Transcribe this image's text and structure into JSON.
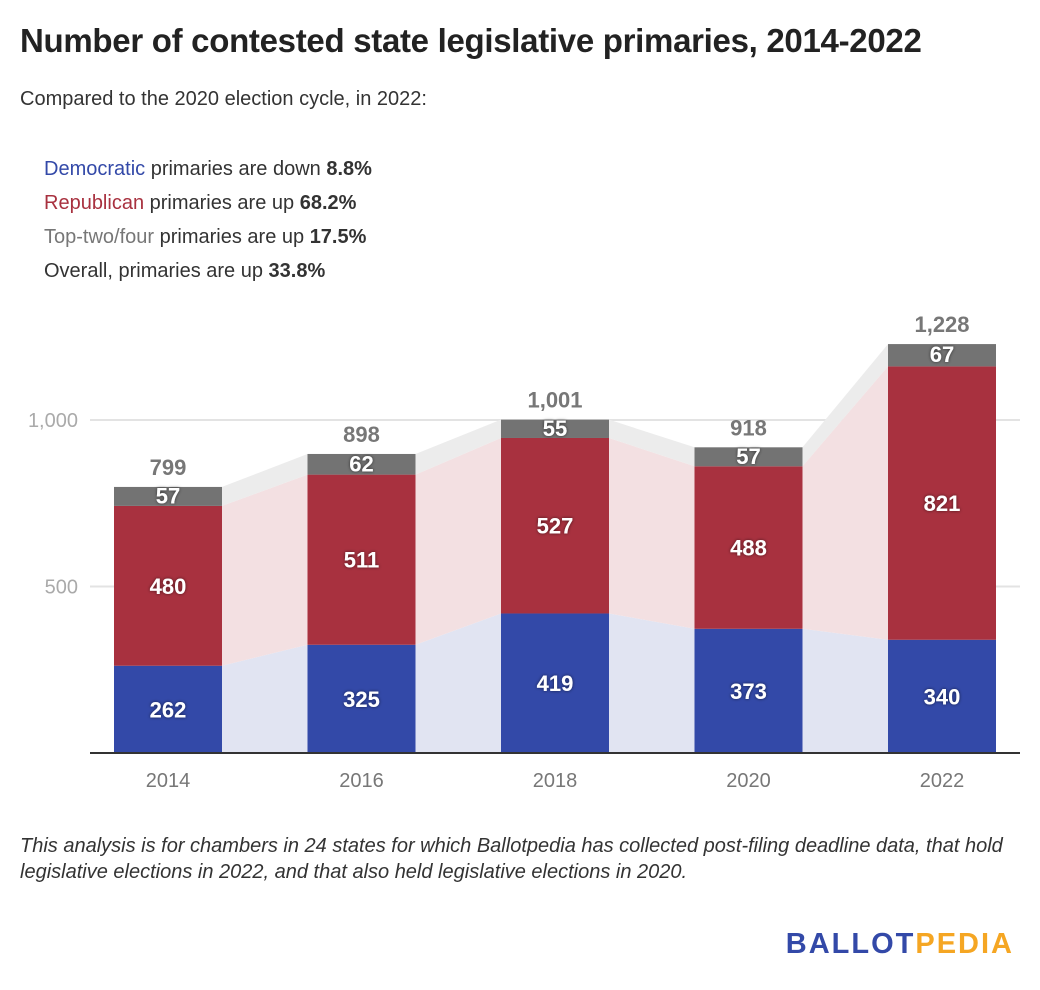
{
  "title": "Number of contested state legislative primaries, 2014-2022",
  "subtitle": "Compared to the 2020 election cycle, in 2022:",
  "notes": [
    {
      "keyword": "Democratic",
      "text": " primaries are down ",
      "value": "8.8%",
      "color": "#3349a8"
    },
    {
      "keyword": "Republican",
      "text": " primaries are up ",
      "value": "68.2%",
      "color": "#a8313f"
    },
    {
      "keyword": "Top-two/four",
      "text": " primaries are up ",
      "value": "17.5%",
      "color": "#777777"
    },
    {
      "keyword": "Overall",
      "text": ", primaries are up ",
      "value": "33.8%",
      "color": "#333333"
    }
  ],
  "chart_data": {
    "type": "bar",
    "stacked": true,
    "categories": [
      "2014",
      "2016",
      "2018",
      "2020",
      "2022"
    ],
    "series": [
      {
        "name": "Democratic",
        "color": "#3349a8",
        "area_color": "#e1e4f2",
        "values": [
          262,
          325,
          419,
          373,
          340
        ]
      },
      {
        "name": "Republican",
        "color": "#a8313f",
        "area_color": "#f3e0e2",
        "values": [
          480,
          511,
          527,
          488,
          821
        ]
      },
      {
        "name": "Top-two/four",
        "color": "#737373",
        "area_color": "#ececec",
        "values": [
          57,
          62,
          55,
          57,
          67
        ]
      }
    ],
    "totals": [
      "799",
      "898",
      "1,001",
      "918",
      "1,228"
    ],
    "yticks": [
      {
        "value": 500,
        "label": "500"
      },
      {
        "value": 1000,
        "label": "1,000"
      }
    ],
    "ylim": [
      0,
      1250
    ],
    "grid": true
  },
  "footnote": "This analysis is for chambers in 24 states for which Ballotpedia has collected post-filing deadline data, that hold legislative elections in 2022, and that also held legislative elections in 2020.",
  "logo": {
    "part1": "BALLOT",
    "part2": "PEDIA",
    "color1": "#3349a8",
    "color2": "#f5a623"
  }
}
